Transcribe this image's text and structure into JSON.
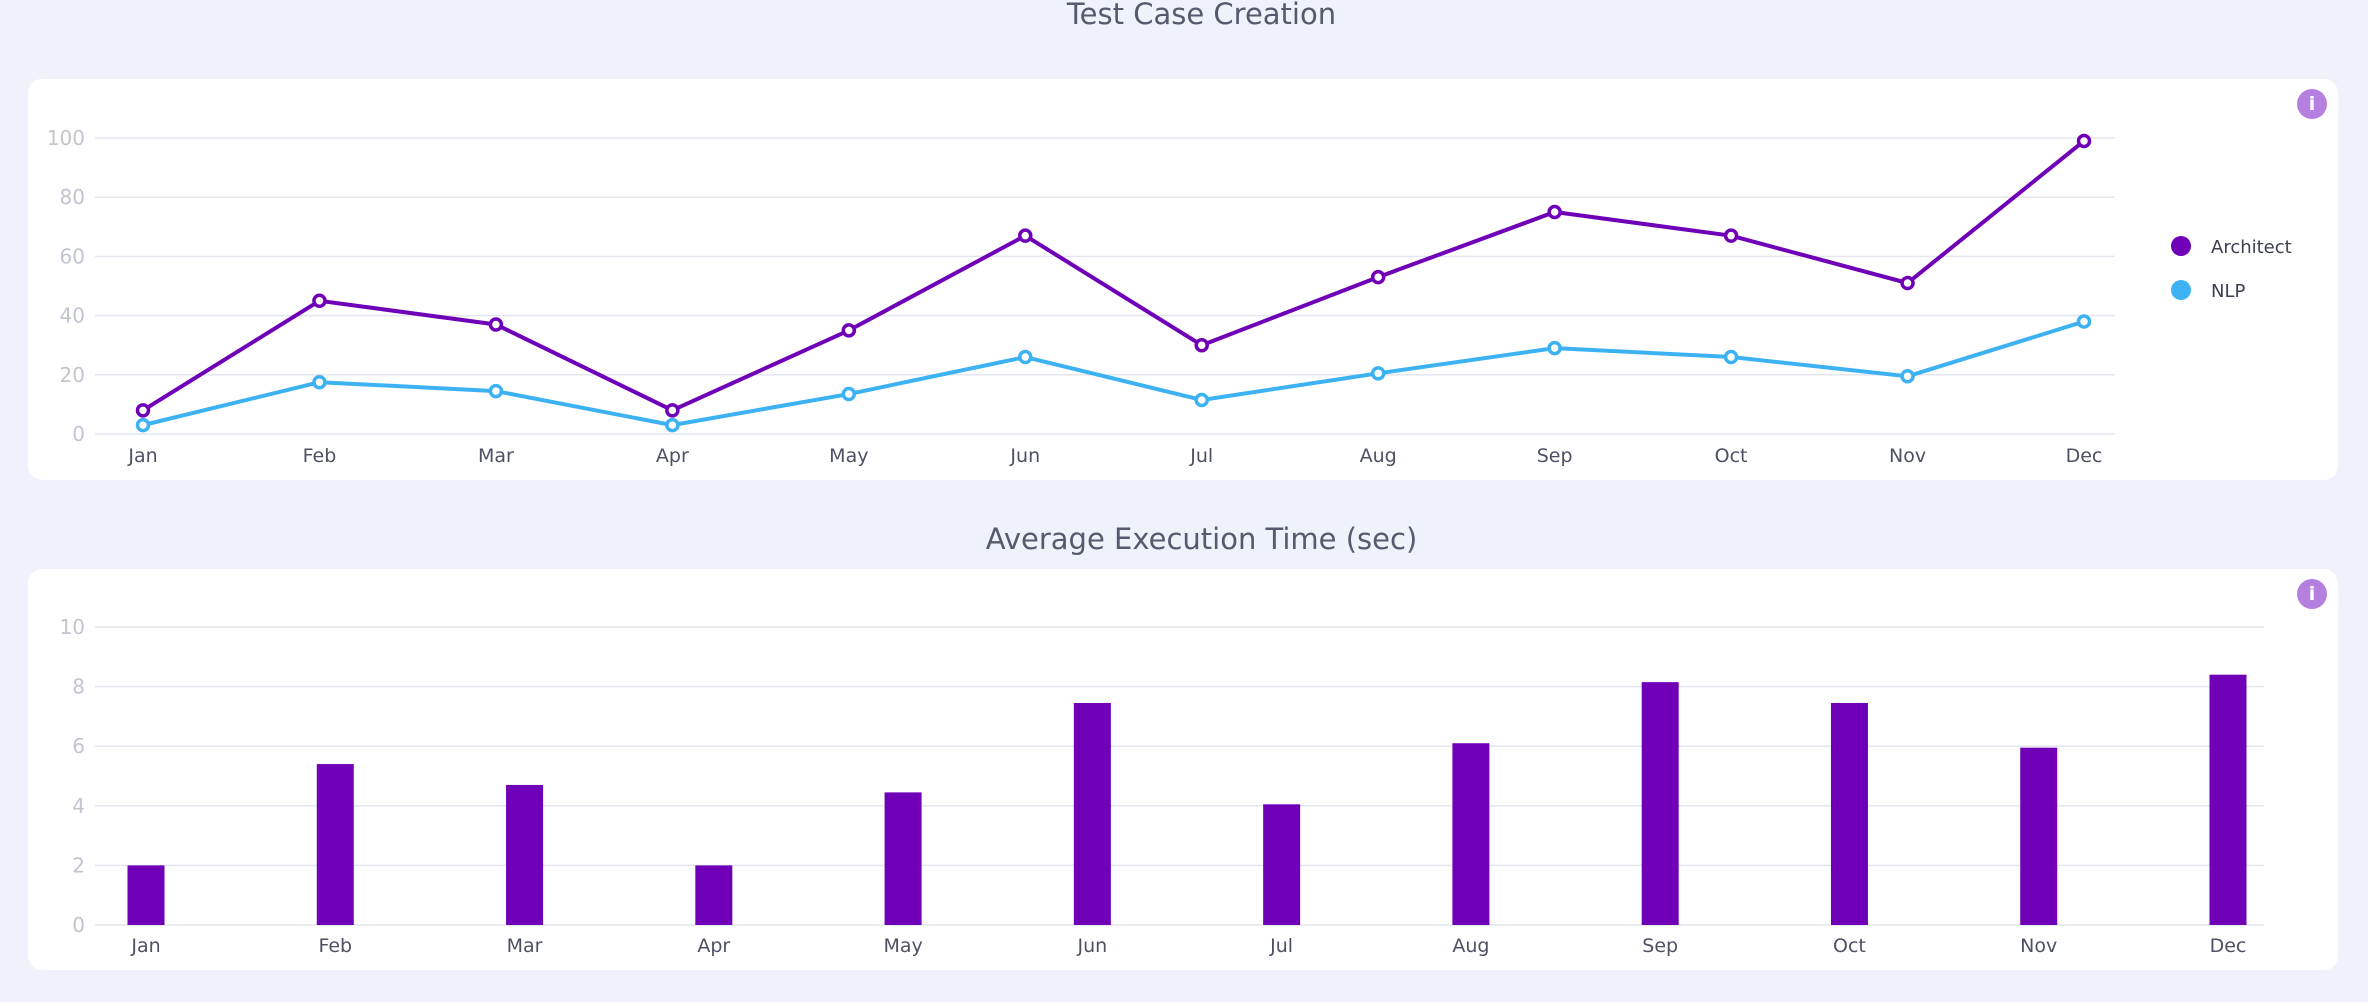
{
  "colors": {
    "background": "#eff2fa",
    "card": "#ffffff",
    "grid": "#e3e6ef",
    "architect": "#6f00b8",
    "nlp": "#3db2f3",
    "bar": "#6f00b8",
    "info": "#b57fdf"
  },
  "info_icon": {
    "name": "info-icon",
    "glyph": "i"
  },
  "chart_data": [
    {
      "type": "line",
      "title": "Test Case Creation",
      "categories": [
        "Jan",
        "Feb",
        "Mar",
        "Apr",
        "May",
        "Jun",
        "Jul",
        "Aug",
        "Sep",
        "Oct",
        "Nov",
        "Dec"
      ],
      "series": [
        {
          "name": "Architect",
          "color": "#6f00b8",
          "values": [
            8,
            45,
            37,
            8,
            35,
            67,
            30,
            53,
            75,
            67,
            51,
            99
          ]
        },
        {
          "name": "NLP",
          "color": "#3db2f3",
          "values": [
            3,
            17.5,
            14.5,
            3,
            13.5,
            26,
            11.5,
            20.5,
            29,
            26,
            19.5,
            38
          ]
        }
      ],
      "yticks": [
        0,
        20,
        40,
        60,
        80,
        100
      ],
      "ylim": [
        0,
        100
      ],
      "grid": true,
      "legend": "right"
    },
    {
      "type": "bar",
      "title": "Average Execution Time (sec)",
      "categories": [
        "Jan",
        "Feb",
        "Mar",
        "Apr",
        "May",
        "Jun",
        "Jul",
        "Aug",
        "Sep",
        "Oct",
        "Nov",
        "Dec"
      ],
      "values": [
        2,
        5.4,
        4.7,
        2,
        4.45,
        7.45,
        4.05,
        6.1,
        8.15,
        7.45,
        5.95,
        8.4
      ],
      "yticks": [
        0,
        2,
        4,
        6,
        8,
        10
      ],
      "ylim": [
        0,
        10
      ],
      "grid": true
    }
  ]
}
